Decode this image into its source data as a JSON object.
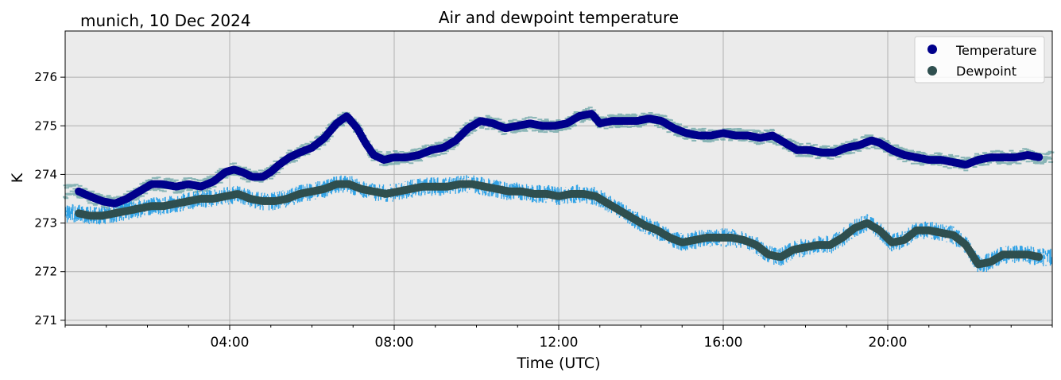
{
  "location_label": "munich, 10 Dec 2024",
  "chart_data": {
    "type": "scatter",
    "title": "Air and dewpoint temperature",
    "xlabel": "Time (UTC)",
    "ylabel": "K",
    "xlim": [
      0,
      24
    ],
    "ylim": [
      270.9,
      276.95
    ],
    "x_ticks": [
      4,
      8,
      12,
      16,
      20
    ],
    "x_tick_labels": [
      "04:00",
      "08:00",
      "12:00",
      "16:00",
      "20:00"
    ],
    "y_ticks": [
      271,
      272,
      273,
      274,
      275,
      276
    ],
    "y_tick_labels": [
      "271",
      "272",
      "273",
      "274",
      "275",
      "276"
    ],
    "grid": true,
    "legend_position": "top-right",
    "series": [
      {
        "name": "Temperature",
        "color": "#00008b",
        "raw_color": "#5f9ea0",
        "x": [
          0.33,
          0.6,
          0.9,
          1.2,
          1.5,
          1.8,
          2.1,
          2.35,
          2.7,
          3.0,
          3.3,
          3.6,
          3.9,
          4.1,
          4.3,
          4.55,
          4.8,
          5.0,
          5.2,
          5.45,
          5.7,
          6.0,
          6.3,
          6.6,
          6.85,
          7.1,
          7.3,
          7.5,
          7.75,
          8.0,
          8.3,
          8.6,
          8.9,
          9.2,
          9.5,
          9.8,
          10.1,
          10.4,
          10.7,
          11.0,
          11.3,
          11.6,
          11.9,
          12.2,
          12.5,
          12.8,
          13.0,
          13.3,
          13.6,
          13.9,
          14.2,
          14.5,
          14.8,
          15.1,
          15.4,
          15.7,
          16.0,
          16.3,
          16.6,
          16.9,
          17.2,
          17.5,
          17.8,
          18.1,
          18.4,
          18.7,
          19.0,
          19.3,
          19.6,
          19.8,
          20.1,
          20.4,
          20.7,
          21.0,
          21.3,
          21.6,
          21.9,
          22.2,
          22.5,
          22.8,
          23.1,
          23.4,
          23.7
        ],
        "y": [
          273.65,
          273.55,
          273.45,
          273.4,
          273.5,
          273.65,
          273.8,
          273.8,
          273.75,
          273.8,
          273.75,
          273.85,
          274.05,
          274.1,
          274.05,
          273.95,
          273.95,
          274.05,
          274.2,
          274.35,
          274.45,
          274.55,
          274.75,
          275.05,
          275.2,
          274.95,
          274.65,
          274.4,
          274.3,
          274.35,
          274.35,
          274.4,
          274.5,
          274.55,
          274.7,
          274.95,
          275.1,
          275.05,
          274.95,
          275.0,
          275.05,
          275.0,
          275.0,
          275.05,
          275.2,
          275.25,
          275.05,
          275.1,
          275.1,
          275.1,
          275.15,
          275.1,
          274.95,
          274.85,
          274.8,
          274.8,
          274.85,
          274.8,
          274.8,
          274.75,
          274.8,
          274.65,
          274.5,
          274.5,
          274.45,
          274.45,
          274.55,
          274.6,
          274.7,
          274.65,
          274.5,
          274.4,
          274.35,
          274.3,
          274.3,
          274.25,
          274.2,
          274.3,
          274.35,
          274.35,
          274.35,
          274.4,
          274.35
        ]
      },
      {
        "name": "Dewpoint",
        "color": "#2f4f4f",
        "raw_color": "#1e9be6",
        "x": [
          0.33,
          0.6,
          0.9,
          1.2,
          1.5,
          1.8,
          2.1,
          2.4,
          2.7,
          3.0,
          3.3,
          3.6,
          3.9,
          4.2,
          4.5,
          4.8,
          5.1,
          5.4,
          5.7,
          6.0,
          6.3,
          6.6,
          6.9,
          7.2,
          7.5,
          7.8,
          8.1,
          8.4,
          8.7,
          9.0,
          9.3,
          9.6,
          9.9,
          10.2,
          10.5,
          10.8,
          11.1,
          11.4,
          11.7,
          12.0,
          12.3,
          12.6,
          12.9,
          13.2,
          13.5,
          13.8,
          14.1,
          14.4,
          14.7,
          15.0,
          15.3,
          15.6,
          15.9,
          16.2,
          16.5,
          16.8,
          17.1,
          17.4,
          17.7,
          18.0,
          18.3,
          18.6,
          18.9,
          19.2,
          19.5,
          19.8,
          20.1,
          20.4,
          20.7,
          21.0,
          21.3,
          21.6,
          21.9,
          22.2,
          22.5,
          22.8,
          23.1,
          23.4,
          23.7
        ],
        "y": [
          273.2,
          273.15,
          273.15,
          273.2,
          273.25,
          273.3,
          273.35,
          273.35,
          273.4,
          273.45,
          273.5,
          273.5,
          273.55,
          273.6,
          273.5,
          273.45,
          273.45,
          273.5,
          273.6,
          273.65,
          273.7,
          273.8,
          273.8,
          273.7,
          273.65,
          273.6,
          273.65,
          273.7,
          273.75,
          273.75,
          273.75,
          273.8,
          273.8,
          273.75,
          273.7,
          273.65,
          273.65,
          273.6,
          273.6,
          273.55,
          273.6,
          273.6,
          273.55,
          273.4,
          273.25,
          273.1,
          272.95,
          272.85,
          272.7,
          272.6,
          272.65,
          272.7,
          272.7,
          272.7,
          272.65,
          272.55,
          272.35,
          272.3,
          272.45,
          272.5,
          272.55,
          272.55,
          272.7,
          272.9,
          273.0,
          272.85,
          272.6,
          272.65,
          272.85,
          272.85,
          272.8,
          272.75,
          272.55,
          272.15,
          272.2,
          272.35,
          272.35,
          272.35,
          272.3
        ]
      }
    ]
  }
}
